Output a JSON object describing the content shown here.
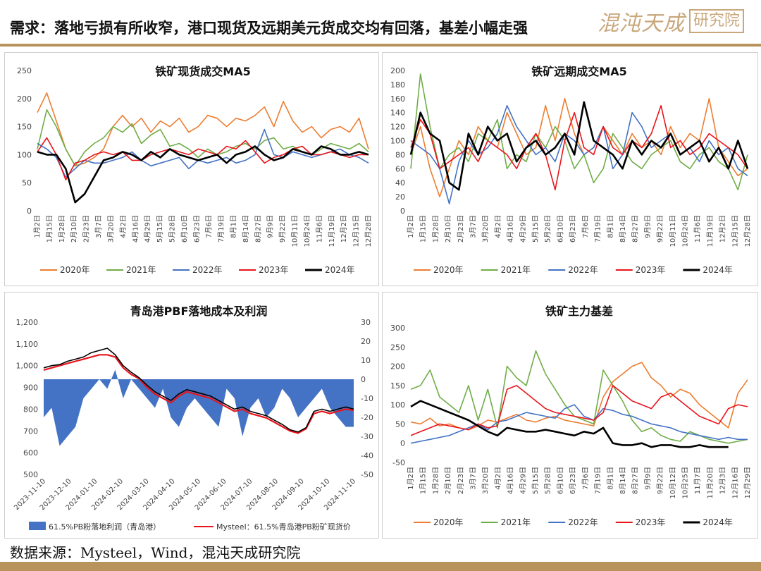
{
  "header": {
    "label": "需求",
    "colon": "：",
    "text": "落地亏损有所收窄，港口现货及远期美元货成交均有回落，基差小幅走强",
    "logo_script": "混沌天成",
    "logo_box": "研究院"
  },
  "footer": {
    "text": "数据来源：Mysteel，Wind，混沌天成研究院"
  },
  "colors": {
    "2020": "#ED7D31",
    "2021": "#70AD47",
    "2022": "#4472C4",
    "2023": "#E8141B",
    "2024": "#000000",
    "profit_area": "#4472C4",
    "price_line": "#E8141B",
    "brand": "#b8945c"
  },
  "chart_data": [
    {
      "id": "spot",
      "type": "line",
      "title": "铁矿现货成交MA5",
      "ylim": [
        0,
        250
      ],
      "yticks": [
        0,
        50,
        100,
        150,
        200,
        250
      ],
      "x_labels": [
        "1月2日",
        "1月15日",
        "1月28日",
        "2月10日",
        "2月23日",
        "3月7日",
        "3月20日",
        "4月2日",
        "4月16日",
        "4月29日",
        "5月15日",
        "5月28日",
        "6月10日",
        "6月23日",
        "7月6日",
        "7月19日",
        "8月1日",
        "8月14日",
        "8月27日",
        "9月9日",
        "9月22日",
        "10月11日",
        "10月24日",
        "11月6日",
        "11月19日",
        "12月2日",
        "12月15日",
        "12月28日"
      ],
      "x_count": 36,
      "legend": [
        "2020年",
        "2021年",
        "2022年",
        "2023年",
        "2024年"
      ],
      "series": [
        {
          "name": "2020年",
          "values": [
            175,
            210,
            160,
            110,
            80,
            85,
            95,
            110,
            150,
            170,
            150,
            165,
            140,
            160,
            150,
            165,
            140,
            150,
            170,
            165,
            150,
            165,
            160,
            170,
            185,
            150,
            195,
            160,
            140,
            150,
            130,
            145,
            150,
            140,
            165,
            110
          ]
        },
        {
          "name": "2021年",
          "values": [
            110,
            180,
            150,
            110,
            80,
            105,
            120,
            130,
            150,
            140,
            155,
            120,
            135,
            145,
            115,
            120,
            110,
            95,
            110,
            100,
            105,
            115,
            120,
            110,
            125,
            130,
            110,
            115,
            105,
            100,
            110,
            120,
            115,
            110,
            120,
            105
          ]
        },
        {
          "name": "2022年",
          "values": [
            120,
            110,
            95,
            60,
            75,
            90,
            85,
            85,
            90,
            95,
            105,
            90,
            80,
            85,
            90,
            95,
            75,
            90,
            85,
            90,
            95,
            85,
            90,
            100,
            145,
            100,
            95,
            105,
            100,
            95,
            100,
            105,
            110,
            100,
            95,
            85
          ]
        },
        {
          "name": "2023年",
          "values": [
            105,
            130,
            100,
            55,
            85,
            90,
            100,
            105,
            100,
            105,
            90,
            90,
            100,
            105,
            110,
            105,
            100,
            110,
            105,
            100,
            115,
            110,
            125,
            105,
            85,
            95,
            100,
            110,
            115,
            100,
            100,
            105,
            100,
            95,
            100,
            100
          ]
        },
        {
          "name": "2024年",
          "values": [
            105,
            100,
            100,
            75,
            15,
            30,
            60,
            90,
            95,
            105,
            100,
            90,
            105,
            95,
            110,
            100,
            95,
            90,
            95,
            100,
            85,
            100,
            105,
            115,
            100,
            90,
            95,
            110,
            105,
            100,
            115,
            110,
            100,
            100,
            105,
            100
          ]
        }
      ]
    },
    {
      "id": "forward",
      "type": "line",
      "title": "铁矿远期成交MA5",
      "ylim": [
        0,
        200
      ],
      "yticks": [
        0,
        20,
        40,
        60,
        80,
        100,
        120,
        140,
        160,
        180,
        200
      ],
      "x_labels": [
        "1月2日",
        "1月15日",
        "1月28日",
        "2月10日",
        "2月23日",
        "3月7日",
        "3月20日",
        "4月2日",
        "4月16日",
        "4月29日",
        "5月15日",
        "5月28日",
        "6月10日",
        "6月23日",
        "7月6日",
        "7月19日",
        "8月1日",
        "8月14日",
        "8月27日",
        "9月9日",
        "9月22日",
        "10月11日",
        "10月24日",
        "11月6日",
        "11月19日",
        "12月2日",
        "12月15日",
        "12月28日"
      ],
      "x_count": 36,
      "legend": [
        "2020年",
        "2021年",
        "2022年",
        "2023年",
        "2024年"
      ],
      "series": [
        {
          "name": "2020年",
          "values": [
            80,
            120,
            60,
            20,
            60,
            100,
            80,
            120,
            100,
            90,
            140,
            110,
            80,
            90,
            150,
            100,
            160,
            110,
            80,
            90,
            120,
            100,
            80,
            110,
            90,
            100,
            80,
            120,
            90,
            110,
            100,
            160,
            90,
            70,
            50,
            60
          ]
        },
        {
          "name": "2021年",
          "values": [
            60,
            195,
            120,
            60,
            80,
            90,
            70,
            110,
            100,
            130,
            60,
            80,
            70,
            110,
            90,
            120,
            100,
            60,
            80,
            40,
            60,
            110,
            90,
            70,
            60,
            80,
            90,
            100,
            70,
            60,
            80,
            90,
            70,
            60,
            30,
            80
          ]
        },
        {
          "name": "2022年",
          "values": [
            100,
            90,
            80,
            60,
            10,
            70,
            100,
            80,
            90,
            110,
            150,
            120,
            100,
            80,
            90,
            70,
            110,
            100,
            80,
            90,
            120,
            60,
            80,
            140,
            120,
            90,
            100,
            110,
            80,
            90,
            70,
            100,
            80,
            90,
            60,
            50
          ]
        },
        {
          "name": "2023年",
          "values": [
            90,
            130,
            110,
            60,
            70,
            80,
            90,
            70,
            100,
            90,
            80,
            60,
            90,
            110,
            80,
            30,
            100,
            140,
            90,
            80,
            120,
            90,
            80,
            100,
            90,
            110,
            150,
            90,
            100,
            80,
            90,
            110,
            100,
            90,
            80,
            60
          ]
        },
        {
          "name": "2024年",
          "values": [
            80,
            140,
            110,
            100,
            40,
            30,
            110,
            80,
            120,
            100,
            110,
            70,
            90,
            100,
            80,
            90,
            110,
            80,
            155,
            100,
            90,
            80,
            60,
            100,
            80,
            100,
            90,
            110,
            80,
            90,
            100,
            70,
            90,
            60,
            100,
            60
          ]
        }
      ]
    },
    {
      "id": "qingdao",
      "type": "line",
      "title": "青岛港PBF落地成本及利润",
      "ylim": [
        500,
        1200
      ],
      "yticks": [
        500,
        600,
        700,
        800,
        900,
        "1,000",
        "1,100",
        "1,200"
      ],
      "y2lim": [
        -50,
        30
      ],
      "y2ticks": [
        -50,
        -40,
        -30,
        -20,
        -10,
        0,
        10,
        20,
        30
      ],
      "x_labels": [
        "2023-11-10",
        "2023-12-10",
        "2024-01-10",
        "2024-02-10",
        "2024-03-10",
        "2024-04-10",
        "2024-05-10",
        "2024-06-10",
        "2024-07-10",
        "2024-08-10",
        "2024-09-10",
        "2024-10-10",
        "2024-11-10"
      ],
      "x_count": 40,
      "legend": [
        "61.5%PB粉落地利润（青岛港）",
        "Mysteel：61.5%青岛港PB粉矿现货价"
      ],
      "series": [
        {
          "name": "61.5%PB粉落地利润（青岛港）",
          "axis": "right",
          "values": [
            -20,
            -15,
            -35,
            -30,
            -25,
            -10,
            -5,
            0,
            -5,
            5,
            -10,
            0,
            -5,
            -10,
            -15,
            -5,
            -20,
            -25,
            -15,
            -10,
            -15,
            -20,
            -25,
            -5,
            -10,
            -30,
            -15,
            -10,
            -20,
            -15,
            -5,
            -10,
            -20,
            -15,
            -10,
            -5,
            -15,
            -20,
            -25,
            -25
          ]
        },
        {
          "name": "Mysteel：61.5%青岛港PB粉矿现货价",
          "axis": "left",
          "values": [
            980,
            990,
            1000,
            1010,
            1020,
            1030,
            1040,
            1050,
            1050,
            1040,
            990,
            960,
            940,
            900,
            870,
            850,
            830,
            860,
            880,
            870,
            860,
            850,
            830,
            810,
            790,
            800,
            780,
            770,
            760,
            740,
            720,
            700,
            690,
            710,
            780,
            790,
            780,
            790,
            800,
            795
          ]
        },
        {
          "name": "",
          "axis": "left",
          "values": [
            990,
            1000,
            1005,
            1020,
            1030,
            1040,
            1060,
            1070,
            1080,
            1050,
            1000,
            970,
            945,
            910,
            880,
            860,
            840,
            870,
            890,
            880,
            870,
            860,
            840,
            820,
            800,
            810,
            790,
            780,
            770,
            750,
            730,
            705,
            695,
            715,
            790,
            800,
            790,
            800,
            810,
            800
          ]
        }
      ]
    },
    {
      "id": "basis",
      "type": "line",
      "title": "铁矿主力基差",
      "ylim": [
        -50,
        300
      ],
      "yticks": [
        -50,
        0,
        50,
        100,
        150,
        200,
        250,
        300
      ],
      "x_labels": [
        "1月2日",
        "1月15日",
        "1月28日",
        "2月10日",
        "2月23日",
        "3月7日",
        "3月20日",
        "4月2日",
        "4月16日",
        "4月29日",
        "5月15日",
        "5月28日",
        "6月10日",
        "6月23日",
        "7月6日",
        "7月19日",
        "8月1日",
        "8月14日",
        "8月27日",
        "9月9日",
        "9月22日",
        "10月12日",
        "10月25日",
        "11月7日",
        "11月20日",
        "12月3日",
        "12月16日",
        "12月29日"
      ],
      "x_count": 36,
      "legend": [
        "2020年",
        "2021年",
        "2022年",
        "2023年",
        "2024年"
      ],
      "series": [
        {
          "name": "2020年",
          "values": [
            55,
            50,
            65,
            45,
            50,
            40,
            35,
            45,
            60,
            55,
            65,
            75,
            60,
            55,
            65,
            70,
            60,
            55,
            50,
            45,
            120,
            160,
            180,
            200,
            210,
            170,
            150,
            120,
            140,
            130,
            100,
            80,
            60,
            40,
            130,
            165
          ]
        },
        {
          "name": "2021年",
          "values": [
            140,
            150,
            190,
            120,
            100,
            80,
            150,
            60,
            140,
            40,
            200,
            170,
            150,
            240,
            180,
            140,
            100,
            70,
            60,
            50,
            190,
            150,
            110,
            60,
            30,
            40,
            20,
            10,
            5,
            30,
            20,
            10,
            5,
            0,
            5,
            10
          ]
        },
        {
          "name": "2022年",
          "values": [
            0,
            5,
            10,
            15,
            20,
            30,
            40,
            50,
            35,
            55,
            60,
            70,
            80,
            75,
            70,
            65,
            90,
            100,
            70,
            60,
            90,
            85,
            75,
            70,
            60,
            50,
            45,
            40,
            30,
            25,
            20,
            15,
            10,
            15,
            10,
            10
          ]
        },
        {
          "name": "2023年",
          "values": [
            20,
            30,
            40,
            50,
            45,
            40,
            35,
            50,
            40,
            45,
            140,
            150,
            130,
            110,
            90,
            80,
            75,
            70,
            65,
            60,
            80,
            150,
            130,
            110,
            100,
            90,
            120,
            130,
            110,
            90,
            70,
            60,
            50,
            90,
            100,
            95
          ]
        },
        {
          "name": "2024年",
          "values": [
            95,
            110,
            100,
            90,
            80,
            70,
            60,
            45,
            30,
            20,
            40,
            35,
            30,
            30,
            35,
            30,
            25,
            20,
            30,
            25,
            40,
            0,
            -5,
            -5,
            0,
            -10,
            -5,
            -5,
            -10,
            -10,
            -5,
            -10,
            -10,
            -10,
            null,
            null
          ]
        }
      ]
    }
  ]
}
